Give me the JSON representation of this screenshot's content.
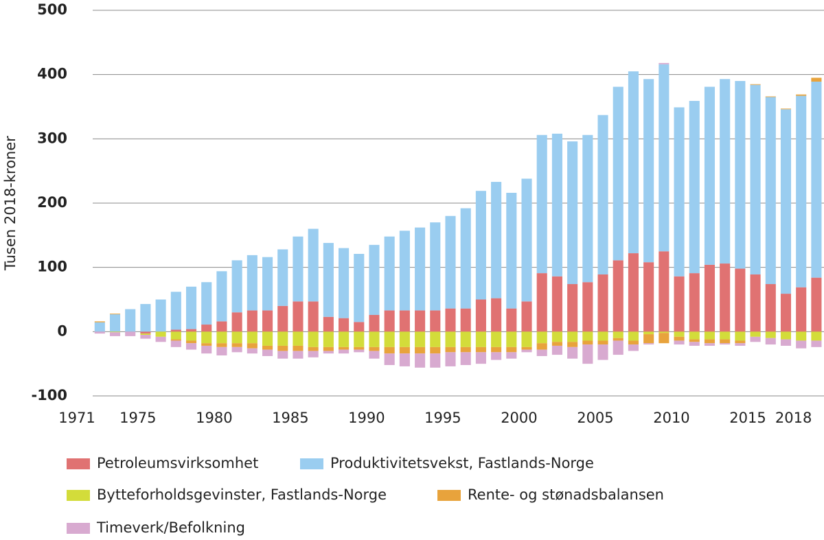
{
  "chart_data": {
    "type": "bar",
    "stacked": true,
    "y_label": "Tusen 2018-kroner",
    "x": [
      1972,
      1973,
      1974,
      1975,
      1976,
      1977,
      1978,
      1979,
      1980,
      1981,
      1982,
      1983,
      1984,
      1985,
      1986,
      1987,
      1988,
      1989,
      1990,
      1991,
      1992,
      1993,
      1994,
      1995,
      1996,
      1997,
      1998,
      1999,
      2000,
      2001,
      2002,
      2003,
      2004,
      2005,
      2006,
      2007,
      2008,
      2009,
      2010,
      2011,
      2012,
      2013,
      2014,
      2015,
      2016,
      2017,
      2018,
      2019
    ],
    "series": [
      {
        "name": "Petroleumsvirksomhet",
        "color": "#e07272",
        "values": [
          0,
          0,
          0,
          -3,
          0,
          3,
          4,
          11,
          16,
          30,
          33,
          33,
          40,
          47,
          47,
          23,
          21,
          15,
          26,
          33,
          33,
          33,
          33,
          36,
          36,
          50,
          52,
          36,
          47,
          91,
          86,
          74,
          77,
          89,
          111,
          122,
          108,
          125,
          86,
          91,
          104,
          106,
          98,
          89,
          74,
          59,
          69,
          84
        ]
      },
      {
        "name": "Produktivitetsvekst, Fastlands-Norge",
        "color": "#9acdf0",
        "values": [
          14.5,
          27,
          35,
          43,
          50,
          59,
          66,
          66,
          78,
          81,
          86,
          83,
          88,
          101,
          113,
          115,
          109,
          106,
          109,
          115,
          124,
          129,
          137,
          144,
          156,
          169,
          181,
          180,
          191,
          215,
          222,
          222,
          229,
          248,
          270,
          283,
          285,
          291,
          263,
          268,
          277,
          287,
          292,
          295,
          291,
          287,
          298,
          305
        ]
      },
      {
        "name": "Bytteforholdsgevinster, Fastlands-Norge",
        "color": "#d3dc3a",
        "values": [
          0,
          -1,
          0,
          -2,
          -8,
          -12,
          -14,
          -18,
          -18,
          -18,
          -18,
          -22,
          -22,
          -22,
          -24,
          -24,
          -24,
          -24,
          -24,
          -24,
          -24,
          -24,
          -24,
          -24,
          -24,
          -24,
          -24,
          -24,
          -24,
          -18,
          -16,
          -16,
          -14,
          -14,
          -10,
          -14,
          -4,
          -2,
          -8,
          -12,
          -12,
          -12,
          -14,
          -8,
          -10,
          -12,
          -14,
          -14
        ]
      },
      {
        "name": "Rente- og stønadsbalansen",
        "color": "#e8a33c",
        "values": [
          1.5,
          1,
          0,
          0,
          0,
          -2,
          -4,
          -4,
          -6,
          -6,
          -8,
          -6,
          -8,
          -8,
          -6,
          -6,
          -4,
          -4,
          -6,
          -10,
          -10,
          -10,
          -10,
          -8,
          -8,
          -8,
          -8,
          -8,
          -4,
          -10,
          -6,
          -8,
          -6,
          -6,
          -4,
          -6,
          -14,
          -16,
          -6,
          -4,
          -6,
          -6,
          -4,
          1,
          1,
          1,
          2,
          6
        ]
      },
      {
        "name": "Timeverk/Befolkning",
        "color": "#d8aad0",
        "values": [
          -3,
          -6,
          -7,
          -6,
          -8,
          -10,
          -10,
          -12,
          -13,
          -8,
          -8,
          -10,
          -12,
          -12,
          -10,
          -4,
          -6,
          -4,
          -12,
          -18,
          -20,
          -22,
          -22,
          -22,
          -20,
          -18,
          -12,
          -10,
          -4,
          -10,
          -14,
          -18,
          -30,
          -24,
          -22,
          -10,
          -2,
          2,
          -6,
          -6,
          -4,
          -2,
          -4,
          -8,
          -10,
          -10,
          -12,
          -10
        ]
      }
    ],
    "xlim": [
      1971,
      2020
    ],
    "xticks": [
      1971,
      1975,
      1980,
      1985,
      1990,
      1995,
      2000,
      2005,
      2010,
      2015,
      2018
    ],
    "ylim": [
      -100,
      500
    ],
    "yticks": [
      -100,
      0,
      100,
      200,
      300,
      400,
      500
    ],
    "grid": true
  }
}
